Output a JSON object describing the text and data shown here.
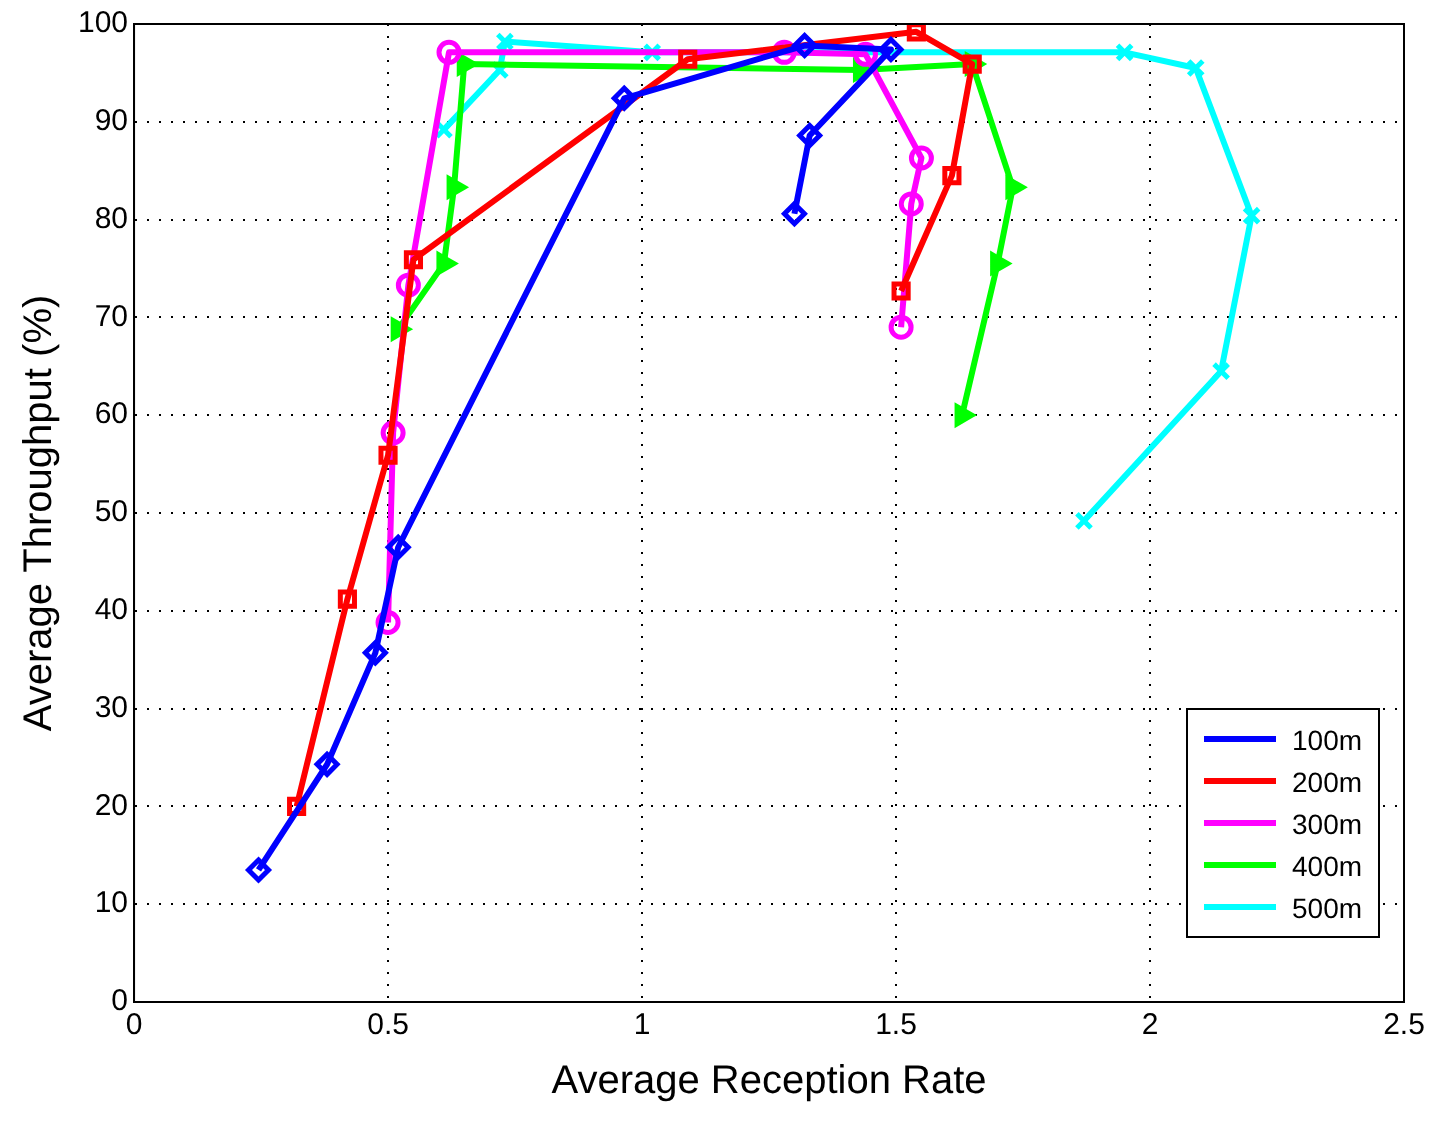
{
  "chart_data": {
    "type": "line",
    "xlabel": "Average Reception Rate",
    "ylabel": "Average Throughput (%)",
    "xlim": [
      0,
      2.5
    ],
    "xticks": [
      0,
      0.5,
      1,
      1.5,
      2,
      2.5
    ],
    "ylim": [
      0,
      100
    ],
    "yticks": [
      0,
      10,
      20,
      30,
      40,
      50,
      60,
      70,
      80,
      90,
      100
    ],
    "grid": true,
    "legend": "bottom right",
    "line_style": "solid",
    "series": [
      {
        "name": "100m",
        "color": "#0000ff",
        "marker": "diamond",
        "x": [
          0.245,
          0.38,
          0.475,
          0.52,
          0.965,
          1.32,
          1.49,
          1.33,
          1.3
        ],
        "values": [
          13.5,
          24.3,
          35.7,
          46.5,
          92.4,
          97.8,
          97.4,
          88.6,
          80.6
        ]
      },
      {
        "name": "200m",
        "color": "#ff0000",
        "marker": "square",
        "x": [
          0.32,
          0.42,
          0.5,
          0.55,
          1.09,
          1.54,
          1.65,
          1.61,
          1.51
        ],
        "values": [
          20,
          41.2,
          55.9,
          75.9,
          96.4,
          99.2,
          95.9,
          84.5,
          72.7
        ]
      },
      {
        "name": "300m",
        "color": "#ff00ff",
        "marker": "circle",
        "x": [
          0.5,
          0.51,
          0.54,
          0.62,
          1.28,
          1.44,
          1.55,
          1.53,
          1.51
        ],
        "values": [
          38.8,
          58.2,
          73.3,
          97.1,
          97.1,
          96.9,
          86.3,
          81.6,
          69
        ]
      },
      {
        "name": "400m",
        "color": "#00ff00",
        "marker": "triangle",
        "x": [
          0.52,
          0.61,
          0.63,
          0.65,
          1.43,
          1.65,
          1.73,
          1.7,
          1.63
        ],
        "values": [
          68.8,
          75.5,
          83.3,
          95.9,
          95.3,
          95.9,
          83.3,
          75.5,
          60
        ]
      },
      {
        "name": "500m",
        "color": "#00ffff",
        "marker": "cross",
        "x": [
          0.61,
          0.72,
          0.73,
          1.02,
          1.95,
          2.09,
          2.2,
          2.14,
          1.87
        ],
        "values": [
          89.2,
          95.3,
          98.2,
          97.1,
          97.1,
          95.5,
          80.4,
          64.5,
          49.2
        ]
      }
    ]
  }
}
